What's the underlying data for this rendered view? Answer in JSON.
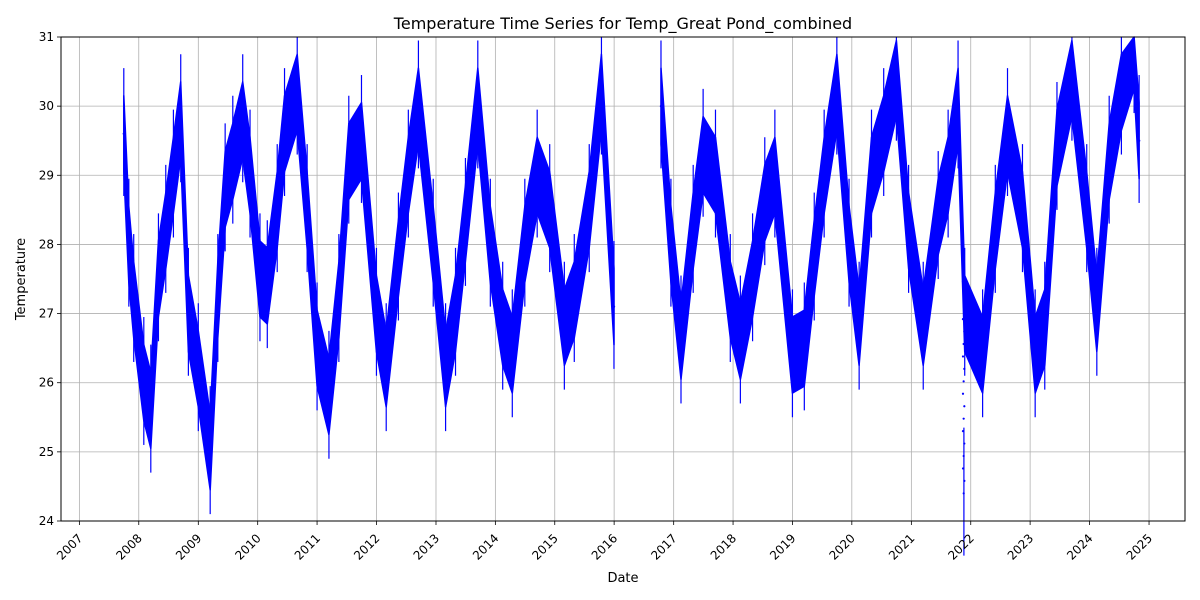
{
  "chart_data": {
    "type": "scatter",
    "title": "Temperature Time Series for Temp_Great Pond_combined",
    "xlabel": "Date",
    "ylabel": "Temperature",
    "xlim": [
      "2006-09-10",
      "2025-08-10"
    ],
    "ylim": [
      24,
      31
    ],
    "x_ticks": [
      "2007",
      "2008",
      "2009",
      "2010",
      "2011",
      "2012",
      "2013",
      "2014",
      "2015",
      "2016",
      "2017",
      "2018",
      "2019",
      "2020",
      "2021",
      "2022",
      "2023",
      "2024",
      "2025"
    ],
    "y_ticks": [
      24,
      25,
      26,
      27,
      28,
      29,
      30,
      31
    ],
    "grid": true,
    "legend": "none",
    "series_color": "#0000ff",
    "series": [
      {
        "points": [
          [
            "2007-10-01",
            29.6
          ],
          [
            "2007-11-01",
            28.0
          ],
          [
            "2007-12-01",
            27.2
          ],
          [
            "2008-02-01",
            26.0
          ],
          [
            "2008-03-15",
            25.6
          ],
          [
            "2008-05-01",
            27.5
          ],
          [
            "2008-06-15",
            28.2
          ],
          [
            "2008-08-01",
            29.0
          ],
          [
            "2008-09-15",
            29.8
          ],
          [
            "2008-11-01",
            27.0
          ],
          [
            "2009-01-01",
            26.2
          ],
          [
            "2009-03-15",
            25.0
          ],
          [
            "2009-05-01",
            27.2
          ],
          [
            "2009-06-15",
            28.8
          ],
          [
            "2009-08-01",
            29.2
          ],
          [
            "2009-10-01",
            29.8
          ],
          [
            "2009-11-15",
            29.0
          ],
          [
            "2010-01-15",
            27.5
          ],
          [
            "2010-03-01",
            27.4
          ],
          [
            "2010-05-01",
            28.5
          ],
          [
            "2010-06-15",
            29.6
          ],
          [
            "2010-09-01",
            30.2
          ],
          [
            "2010-11-01",
            28.5
          ],
          [
            "2011-01-01",
            26.5
          ],
          [
            "2011-03-15",
            25.8
          ],
          [
            "2011-05-15",
            27.2
          ],
          [
            "2011-07-15",
            29.2
          ],
          [
            "2011-10-01",
            29.5
          ],
          [
            "2012-01-01",
            27.0
          ],
          [
            "2012-03-01",
            26.2
          ],
          [
            "2012-05-15",
            27.8
          ],
          [
            "2012-07-15",
            29.0
          ],
          [
            "2012-09-15",
            30.0
          ],
          [
            "2012-12-15",
            28.0
          ],
          [
            "2013-03-01",
            26.2
          ],
          [
            "2013-05-01",
            27.0
          ],
          [
            "2013-07-01",
            28.3
          ],
          [
            "2013-09-15",
            30.0
          ],
          [
            "2013-12-01",
            28.0
          ],
          [
            "2014-02-15",
            26.8
          ],
          [
            "2014-04-15",
            26.4
          ],
          [
            "2014-07-01",
            28.0
          ],
          [
            "2014-09-15",
            29.0
          ],
          [
            "2014-12-01",
            28.5
          ],
          [
            "2015-03-01",
            26.8
          ],
          [
            "2015-05-01",
            27.2
          ],
          [
            "2015-08-01",
            28.5
          ],
          [
            "2015-10-15",
            30.2
          ],
          [
            "2015-12-31",
            27.1
          ],
          [
            "2016-10-15",
            30.0
          ],
          [
            "2016-12-15",
            28.0
          ],
          [
            "2017-02-15",
            26.6
          ],
          [
            "2017-05-01",
            28.2
          ],
          [
            "2017-07-01",
            29.3
          ],
          [
            "2017-09-15",
            29.0
          ],
          [
            "2017-12-15",
            27.2
          ],
          [
            "2018-02-15",
            26.6
          ],
          [
            "2018-05-01",
            27.5
          ],
          [
            "2018-07-15",
            28.6
          ],
          [
            "2018-09-15",
            29.0
          ],
          [
            "2019-01-01",
            26.4
          ],
          [
            "2019-03-15",
            26.5
          ],
          [
            "2019-05-15",
            27.8
          ],
          [
            "2019-07-15",
            29.0
          ],
          [
            "2019-10-01",
            30.2
          ],
          [
            "2019-12-15",
            28.0
          ],
          [
            "2020-02-15",
            26.8
          ],
          [
            "2020-05-01",
            29.0
          ],
          [
            "2020-07-15",
            29.6
          ],
          [
            "2020-10-01",
            30.4
          ],
          [
            "2020-12-15",
            28.2
          ],
          [
            "2021-03-15",
            26.8
          ],
          [
            "2021-06-15",
            28.4
          ],
          [
            "2021-08-15",
            29.0
          ],
          [
            "2021-10-15",
            30.0
          ],
          [
            "2021-11-20",
            24.4
          ],
          [
            "2021-11-25",
            27.0
          ],
          [
            "2022-03-15",
            26.4
          ],
          [
            "2022-06-01",
            28.2
          ],
          [
            "2022-08-15",
            29.6
          ],
          [
            "2022-11-15",
            28.5
          ],
          [
            "2023-02-01",
            26.4
          ],
          [
            "2023-04-01",
            26.8
          ],
          [
            "2023-06-15",
            29.4
          ],
          [
            "2023-09-15",
            30.4
          ],
          [
            "2023-12-15",
            28.5
          ],
          [
            "2024-02-15",
            27.0
          ],
          [
            "2024-05-01",
            29.2
          ],
          [
            "2024-07-15",
            30.2
          ],
          [
            "2024-10-01",
            30.8
          ],
          [
            "2024-11-01",
            29.5
          ]
        ]
      }
    ]
  }
}
